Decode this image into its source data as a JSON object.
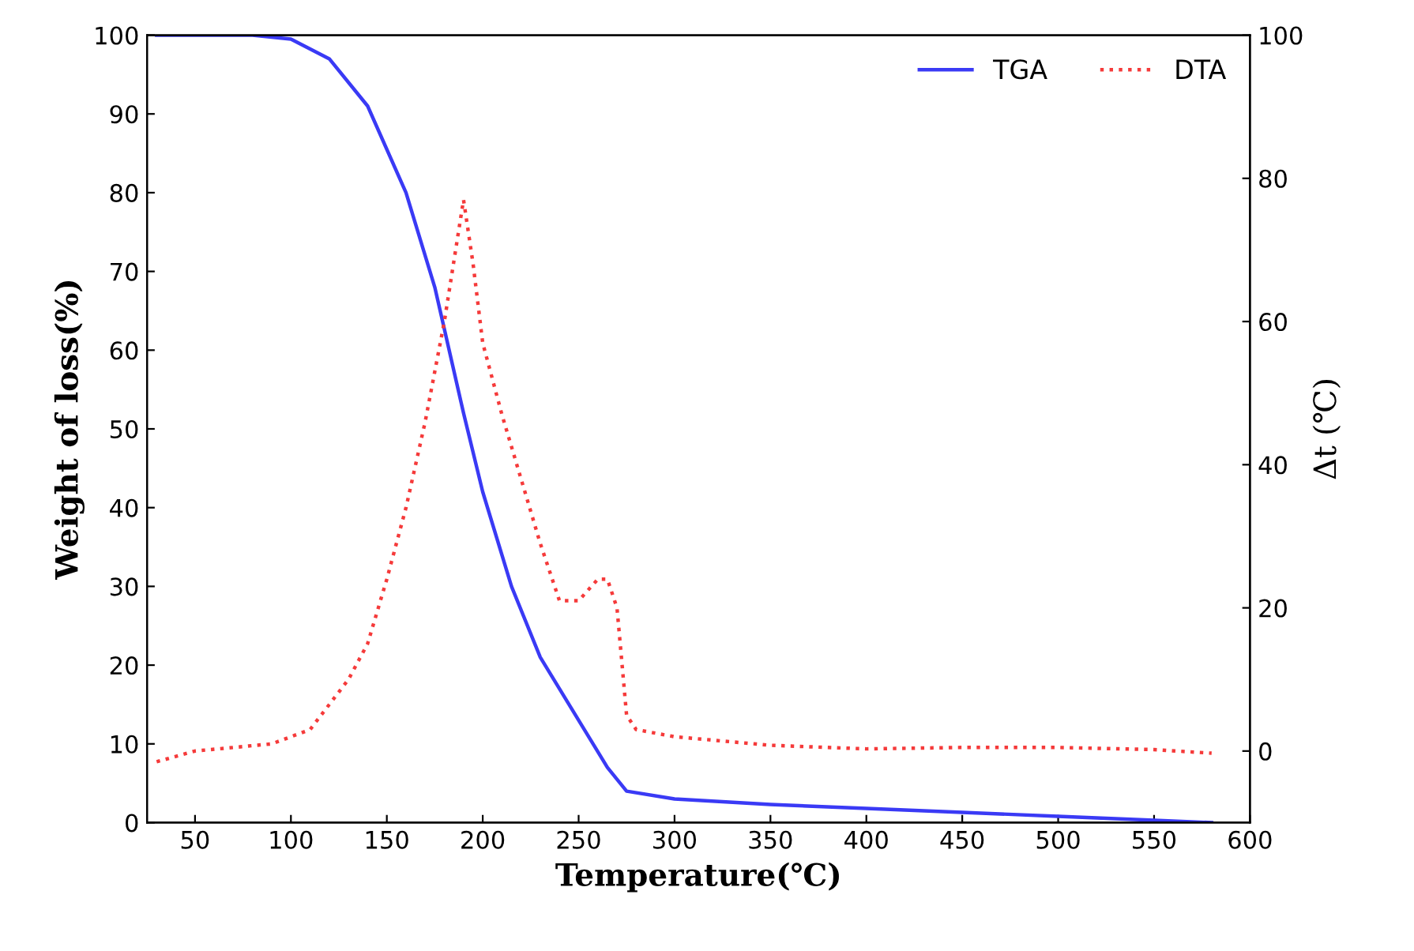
{
  "chart_data": {
    "type": "line",
    "xlabel": "Temperature(℃)",
    "ylabel": "Weight of loss(%)",
    "y2label": "Δt (℃)",
    "xlim": [
      25,
      600
    ],
    "xticks": [
      50,
      100,
      150,
      200,
      250,
      300,
      350,
      400,
      450,
      500,
      550,
      600
    ],
    "ylim": [
      0,
      100
    ],
    "yticks": [
      0,
      10,
      20,
      30,
      40,
      50,
      60,
      70,
      80,
      90,
      100
    ],
    "y2lim": [
      -10,
      100
    ],
    "y2ticks": [
      0,
      20,
      40,
      60,
      80,
      100
    ],
    "legend": "top right",
    "grid": false,
    "series": [
      {
        "name": "TGA",
        "color": "#3a3af5",
        "line_style": "solid",
        "x": [
          30,
          80,
          100,
          120,
          140,
          160,
          175,
          190,
          200,
          215,
          230,
          250,
          265,
          275,
          300,
          350,
          400,
          450,
          500,
          550,
          580
        ],
        "values": [
          100,
          100,
          99.5,
          97,
          91,
          80,
          68,
          52,
          42,
          30,
          21,
          13,
          7,
          4,
          3,
          2.3,
          1.8,
          1.3,
          0.8,
          0.3,
          0
        ]
      },
      {
        "name": "DTA",
        "color": "#f53a3a",
        "line_style": "dotted",
        "axis": "y2",
        "x": [
          30,
          50,
          90,
          110,
          130,
          140,
          150,
          160,
          170,
          180,
          190,
          195,
          200,
          210,
          220,
          230,
          240,
          250,
          260,
          265,
          270,
          275,
          280,
          300,
          350,
          400,
          450,
          500,
          550,
          580
        ],
        "values": [
          -1.5,
          0,
          1,
          3,
          10,
          15,
          24,
          34,
          46,
          60,
          77,
          68,
          57,
          47,
          38,
          29,
          21,
          21,
          24,
          24,
          20,
          5,
          3,
          2,
          0.8,
          0.3,
          0.5,
          0.5,
          0.2,
          -0.3
        ]
      }
    ]
  }
}
